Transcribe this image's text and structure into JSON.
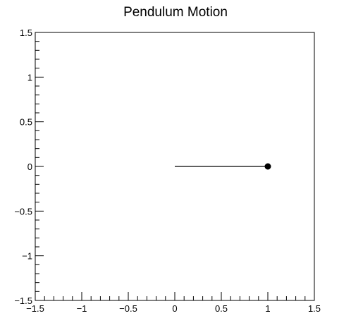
{
  "chart_data": {
    "type": "line",
    "title": "Pendulum Motion",
    "xlabel": "",
    "ylabel": "",
    "xlim": [
      -1.5,
      1.5
    ],
    "ylim": [
      -1.5,
      1.5
    ],
    "x_ticks": [
      -1.5,
      -1,
      -0.5,
      0,
      0.5,
      1,
      1.5
    ],
    "y_ticks": [
      -1.5,
      -1,
      -0.5,
      0,
      0.5,
      1,
      1.5
    ],
    "x_tick_labels": [
      "−1.5",
      "−1",
      "−0.5",
      "0",
      "0.5",
      "1",
      "1.5"
    ],
    "y_tick_labels": [
      "−1.5",
      "−1",
      "−0.5",
      "0",
      "0.5",
      "1",
      "1.5"
    ],
    "x_minor_per_major": 5,
    "y_minor_per_major": 5,
    "grid": false,
    "legend": "none",
    "series": [
      {
        "x": [
          0,
          1
        ],
        "y": [
          0,
          0
        ]
      }
    ],
    "markers": [
      {
        "x": 1,
        "y": 0
      }
    ],
    "colors": {
      "line": "#000000",
      "marker": "#000000",
      "frame": "#000000",
      "background": "#ffffff"
    }
  }
}
